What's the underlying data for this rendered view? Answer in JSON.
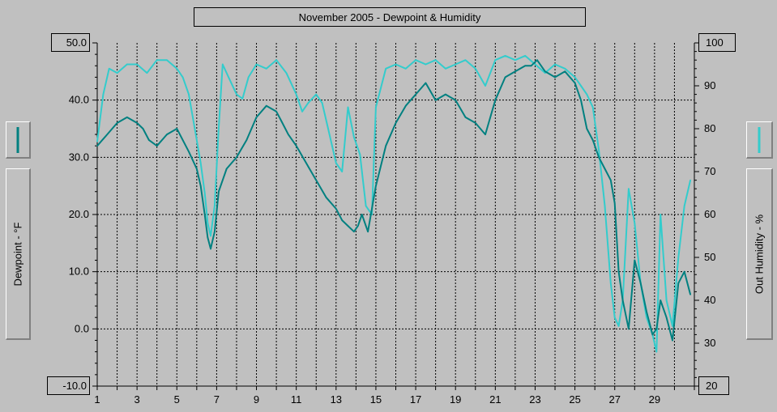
{
  "title": "November 2005 - Dewpoint & Humidity",
  "left_axis_label": "Dewpoint - °F",
  "right_axis_label": "Out Humidity - %",
  "colors": {
    "dewpoint": "#008080",
    "humidity": "#33cccc",
    "background": "#c0c0c0",
    "grid": "#000000"
  },
  "legend": {
    "left_icon": "dewpoint-line-swatch-icon",
    "right_icon": "humidity-line-swatch-icon"
  },
  "chart_data": {
    "type": "line",
    "title": "November 2005 - Dewpoint & Humidity",
    "xlabel": "",
    "ylabel": "Dewpoint - °F",
    "y2label": "Out Humidity - %",
    "xlim": [
      1,
      31
    ],
    "ylim": [
      -10,
      50
    ],
    "y2lim": [
      20,
      100
    ],
    "grid": true,
    "x_ticks": [
      "1",
      "3",
      "5",
      "7",
      "9",
      "11",
      "13",
      "15",
      "17",
      "19",
      "21",
      "23",
      "25",
      "27",
      "29"
    ],
    "y_ticks": [
      "50.0",
      "40.0",
      "30.0",
      "20.0",
      "10.0",
      "0.0",
      "-10.0"
    ],
    "y2_ticks": [
      "100",
      "90",
      "80",
      "70",
      "60",
      "50",
      "40",
      "30",
      "20"
    ],
    "series": [
      {
        "name": "Dewpoint - °F",
        "axis": "left",
        "x": [
          1,
          1.5,
          2,
          2.5,
          3,
          3.3,
          3.6,
          4,
          4.5,
          5,
          5.3,
          5.6,
          6,
          6.2,
          6.4,
          6.55,
          6.7,
          6.9,
          7.1,
          7.5,
          8,
          8.5,
          9,
          9.5,
          10,
          10.3,
          10.6,
          11,
          11.5,
          12,
          12.5,
          13,
          13.3,
          13.6,
          13.9,
          14.1,
          14.3,
          14.6,
          15,
          15.5,
          16,
          16.5,
          17,
          17.5,
          18,
          18.5,
          19,
          19.5,
          20,
          20.5,
          21,
          21.5,
          22,
          22.5,
          22.8,
          23.1,
          23.5,
          24,
          24.5,
          25,
          25.3,
          25.6,
          25.9,
          26.2,
          26.5,
          26.8,
          27,
          27.2,
          27.4,
          27.7,
          28,
          28.3,
          28.6,
          28.9,
          29.1,
          29.3,
          29.6,
          29.9,
          30.2,
          30.5,
          30.8
        ],
        "y": [
          32,
          34,
          36,
          37,
          36,
          35,
          33,
          32,
          34,
          35,
          33,
          31,
          28,
          25,
          20,
          16,
          14,
          17,
          24,
          28,
          30,
          33,
          37,
          39,
          38,
          36,
          34,
          32,
          29,
          26,
          23,
          21,
          19,
          18,
          17,
          18,
          20,
          17,
          25,
          32,
          36,
          39,
          41,
          43,
          40,
          41,
          40,
          37,
          36,
          34,
          40,
          44,
          45,
          46,
          46,
          47,
          45,
          44,
          45,
          43,
          40,
          35,
          33,
          30,
          28,
          26,
          22,
          10,
          5,
          0,
          12,
          8,
          3,
          -1,
          0,
          5,
          2,
          -2,
          8,
          10,
          6
        ]
      },
      {
        "name": "Out Humidity - %",
        "axis": "right",
        "x": [
          1,
          1.3,
          1.6,
          2,
          2.5,
          3,
          3.5,
          4,
          4.5,
          5,
          5.3,
          5.6,
          5.9,
          6.2,
          6.4,
          6.55,
          6.7,
          6.9,
          7.1,
          7.3,
          7.6,
          8,
          8.3,
          8.6,
          9,
          9.5,
          10,
          10.5,
          11,
          11.3,
          11.6,
          12,
          12.3,
          12.6,
          13,
          13.3,
          13.6,
          13.9,
          14.2,
          14.5,
          14.8,
          15,
          15.5,
          16,
          16.5,
          17,
          17.5,
          18,
          18.5,
          19,
          19.5,
          20,
          20.5,
          21,
          21.5,
          22,
          22.5,
          23,
          23.5,
          24,
          24.5,
          25,
          25.3,
          25.6,
          25.9,
          26.2,
          26.5,
          26.8,
          27,
          27.2,
          27.4,
          27.7,
          28,
          28.3,
          28.6,
          28.9,
          29.1,
          29.3,
          29.6,
          29.9,
          30.2,
          30.5,
          30.8
        ],
        "y": [
          77,
          88,
          94,
          93,
          95,
          95,
          93,
          96,
          96,
          94,
          92,
          88,
          80,
          72,
          65,
          58,
          55,
          62,
          80,
          95,
          92,
          88,
          87,
          92,
          95,
          94,
          96,
          93,
          88,
          84,
          86,
          88,
          86,
          80,
          72,
          70,
          85,
          78,
          74,
          62,
          60,
          85,
          94,
          95,
          94,
          96,
          95,
          96,
          94,
          95,
          96,
          94,
          90,
          96,
          97,
          96,
          97,
          95,
          93,
          95,
          94,
          92,
          90,
          88,
          85,
          75,
          62,
          44,
          36,
          34,
          40,
          66,
          58,
          44,
          36,
          32,
          28,
          60,
          40,
          34,
          50,
          62,
          68
        ]
      }
    ]
  }
}
